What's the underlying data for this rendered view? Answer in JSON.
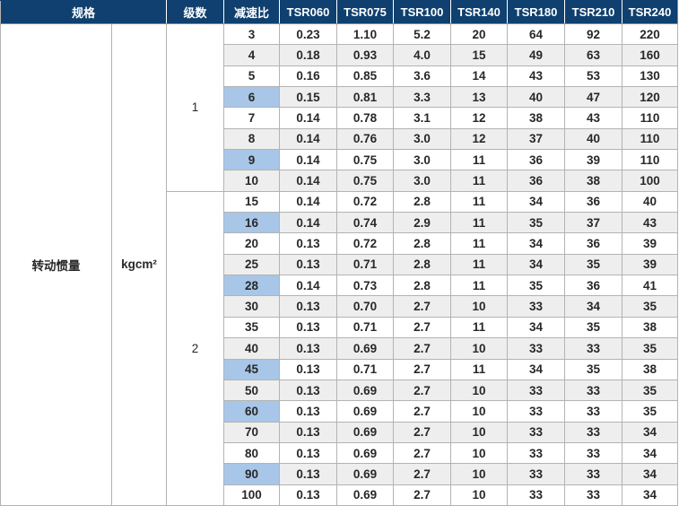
{
  "colors": {
    "header_bg": "#0f406f",
    "header_text": "#ffffff",
    "body_text": "#282828",
    "stripe_bg": "#eeeeee",
    "highlight_bg": "#a8c6e8",
    "cell_border": "#b3b3b3",
    "outer_border": "#8a8a8a"
  },
  "header": {
    "spec_label": "规格",
    "stage_label": "级数",
    "ratio_label": "减速比",
    "models": [
      "TSR060",
      "TSR075",
      "TSR100",
      "TSR140",
      "TSR180",
      "TSR210",
      "TSR240"
    ]
  },
  "left": {
    "property": "转动惯量",
    "unit": "kgcm²"
  },
  "sections": [
    {
      "stage": "1",
      "rows": [
        {
          "ratio": "3",
          "highlight": false,
          "values": [
            "0.23",
            "1.10",
            "5.2",
            "20",
            "64",
            "92",
            "220"
          ]
        },
        {
          "ratio": "4",
          "highlight": false,
          "values": [
            "0.18",
            "0.93",
            "4.0",
            "15",
            "49",
            "63",
            "160"
          ]
        },
        {
          "ratio": "5",
          "highlight": false,
          "values": [
            "0.16",
            "0.85",
            "3.6",
            "14",
            "43",
            "53",
            "130"
          ]
        },
        {
          "ratio": "6",
          "highlight": true,
          "values": [
            "0.15",
            "0.81",
            "3.3",
            "13",
            "40",
            "47",
            "120"
          ]
        },
        {
          "ratio": "7",
          "highlight": false,
          "values": [
            "0.14",
            "0.78",
            "3.1",
            "12",
            "38",
            "43",
            "110"
          ]
        },
        {
          "ratio": "8",
          "highlight": false,
          "values": [
            "0.14",
            "0.76",
            "3.0",
            "12",
            "37",
            "40",
            "110"
          ]
        },
        {
          "ratio": "9",
          "highlight": true,
          "values": [
            "0.14",
            "0.75",
            "3.0",
            "11",
            "36",
            "39",
            "110"
          ]
        },
        {
          "ratio": "10",
          "highlight": false,
          "values": [
            "0.14",
            "0.75",
            "3.0",
            "11",
            "36",
            "38",
            "100"
          ]
        }
      ]
    },
    {
      "stage": "2",
      "rows": [
        {
          "ratio": "15",
          "highlight": false,
          "values": [
            "0.14",
            "0.72",
            "2.8",
            "11",
            "34",
            "36",
            "40"
          ]
        },
        {
          "ratio": "16",
          "highlight": true,
          "values": [
            "0.14",
            "0.74",
            "2.9",
            "11",
            "35",
            "37",
            "43"
          ]
        },
        {
          "ratio": "20",
          "highlight": false,
          "values": [
            "0.13",
            "0.72",
            "2.8",
            "11",
            "34",
            "36",
            "39"
          ]
        },
        {
          "ratio": "25",
          "highlight": false,
          "values": [
            "0.13",
            "0.71",
            "2.8",
            "11",
            "34",
            "35",
            "39"
          ]
        },
        {
          "ratio": "28",
          "highlight": true,
          "values": [
            "0.14",
            "0.73",
            "2.8",
            "11",
            "35",
            "36",
            "41"
          ]
        },
        {
          "ratio": "30",
          "highlight": false,
          "values": [
            "0.13",
            "0.70",
            "2.7",
            "10",
            "33",
            "34",
            "35"
          ]
        },
        {
          "ratio": "35",
          "highlight": false,
          "values": [
            "0.13",
            "0.71",
            "2.7",
            "11",
            "34",
            "35",
            "38"
          ]
        },
        {
          "ratio": "40",
          "highlight": false,
          "values": [
            "0.13",
            "0.69",
            "2.7",
            "10",
            "33",
            "33",
            "35"
          ]
        },
        {
          "ratio": "45",
          "highlight": true,
          "values": [
            "0.13",
            "0.71",
            "2.7",
            "11",
            "34",
            "35",
            "38"
          ]
        },
        {
          "ratio": "50",
          "highlight": false,
          "values": [
            "0.13",
            "0.69",
            "2.7",
            "10",
            "33",
            "33",
            "35"
          ]
        },
        {
          "ratio": "60",
          "highlight": true,
          "values": [
            "0.13",
            "0.69",
            "2.7",
            "10",
            "33",
            "33",
            "35"
          ]
        },
        {
          "ratio": "70",
          "highlight": false,
          "values": [
            "0.13",
            "0.69",
            "2.7",
            "10",
            "33",
            "33",
            "34"
          ]
        },
        {
          "ratio": "80",
          "highlight": false,
          "values": [
            "0.13",
            "0.69",
            "2.7",
            "10",
            "33",
            "33",
            "34"
          ]
        },
        {
          "ratio": "90",
          "highlight": true,
          "values": [
            "0.13",
            "0.69",
            "2.7",
            "10",
            "33",
            "33",
            "34"
          ]
        },
        {
          "ratio": "100",
          "highlight": false,
          "values": [
            "0.13",
            "0.69",
            "2.7",
            "10",
            "33",
            "33",
            "34"
          ]
        }
      ]
    }
  ]
}
